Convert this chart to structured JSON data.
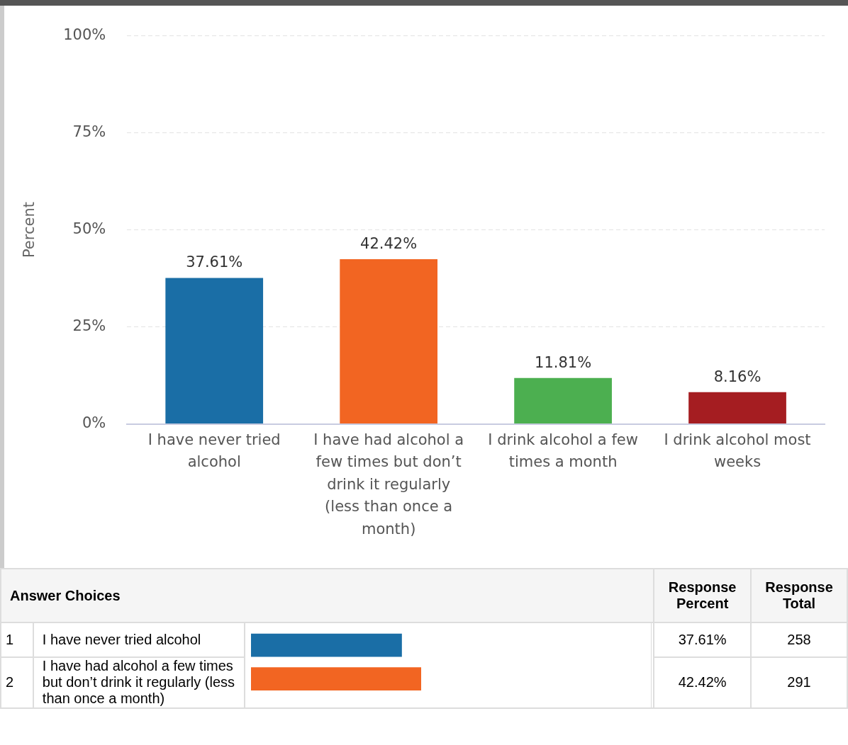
{
  "chart_data": [
    {
      "type": "bar",
      "ylabel": "Percent",
      "categories": [
        "I have never tried alcohol",
        "I have had alcohol a few times but don’t drink it regularly (less than once a month)",
        "I drink alcohol a few times a month",
        "I drink alcohol most weeks"
      ],
      "values": [
        37.61,
        42.42,
        11.81,
        8.16
      ],
      "colors": [
        "#1a6ea6",
        "#f26522",
        "#4caf50",
        "#a51d21"
      ],
      "value_labels": [
        "37.61%",
        "42.42%",
        "11.81%",
        "8.16%"
      ],
      "ylim": [
        0,
        100
      ],
      "yticks": [
        {
          "value": 0,
          "label": "0%"
        },
        {
          "value": 25,
          "label": "25%"
        },
        {
          "value": 50,
          "label": "50%"
        },
        {
          "value": 75,
          "label": "75%"
        },
        {
          "value": 100,
          "label": "100%"
        }
      ],
      "grid": "y",
      "legend": false
    },
    {
      "type": "bar",
      "orientation": "horizontal",
      "categories": [
        "I have never tried alcohol",
        "I have had alcohol a few times but don’t drink it regularly (less than once a month)"
      ],
      "values": [
        37.61,
        42.42
      ],
      "colors": [
        "#1a6ea6",
        "#f26522"
      ],
      "value_labels": [
        "37.61%",
        "42.42%"
      ],
      "xlim": [
        0,
        100
      ],
      "tick_labels": false,
      "legend": false,
      "annotations": [
        "Answer Choices",
        "Response Percent",
        "Response Total",
        "1",
        "2",
        "258",
        "291"
      ]
    }
  ]
}
